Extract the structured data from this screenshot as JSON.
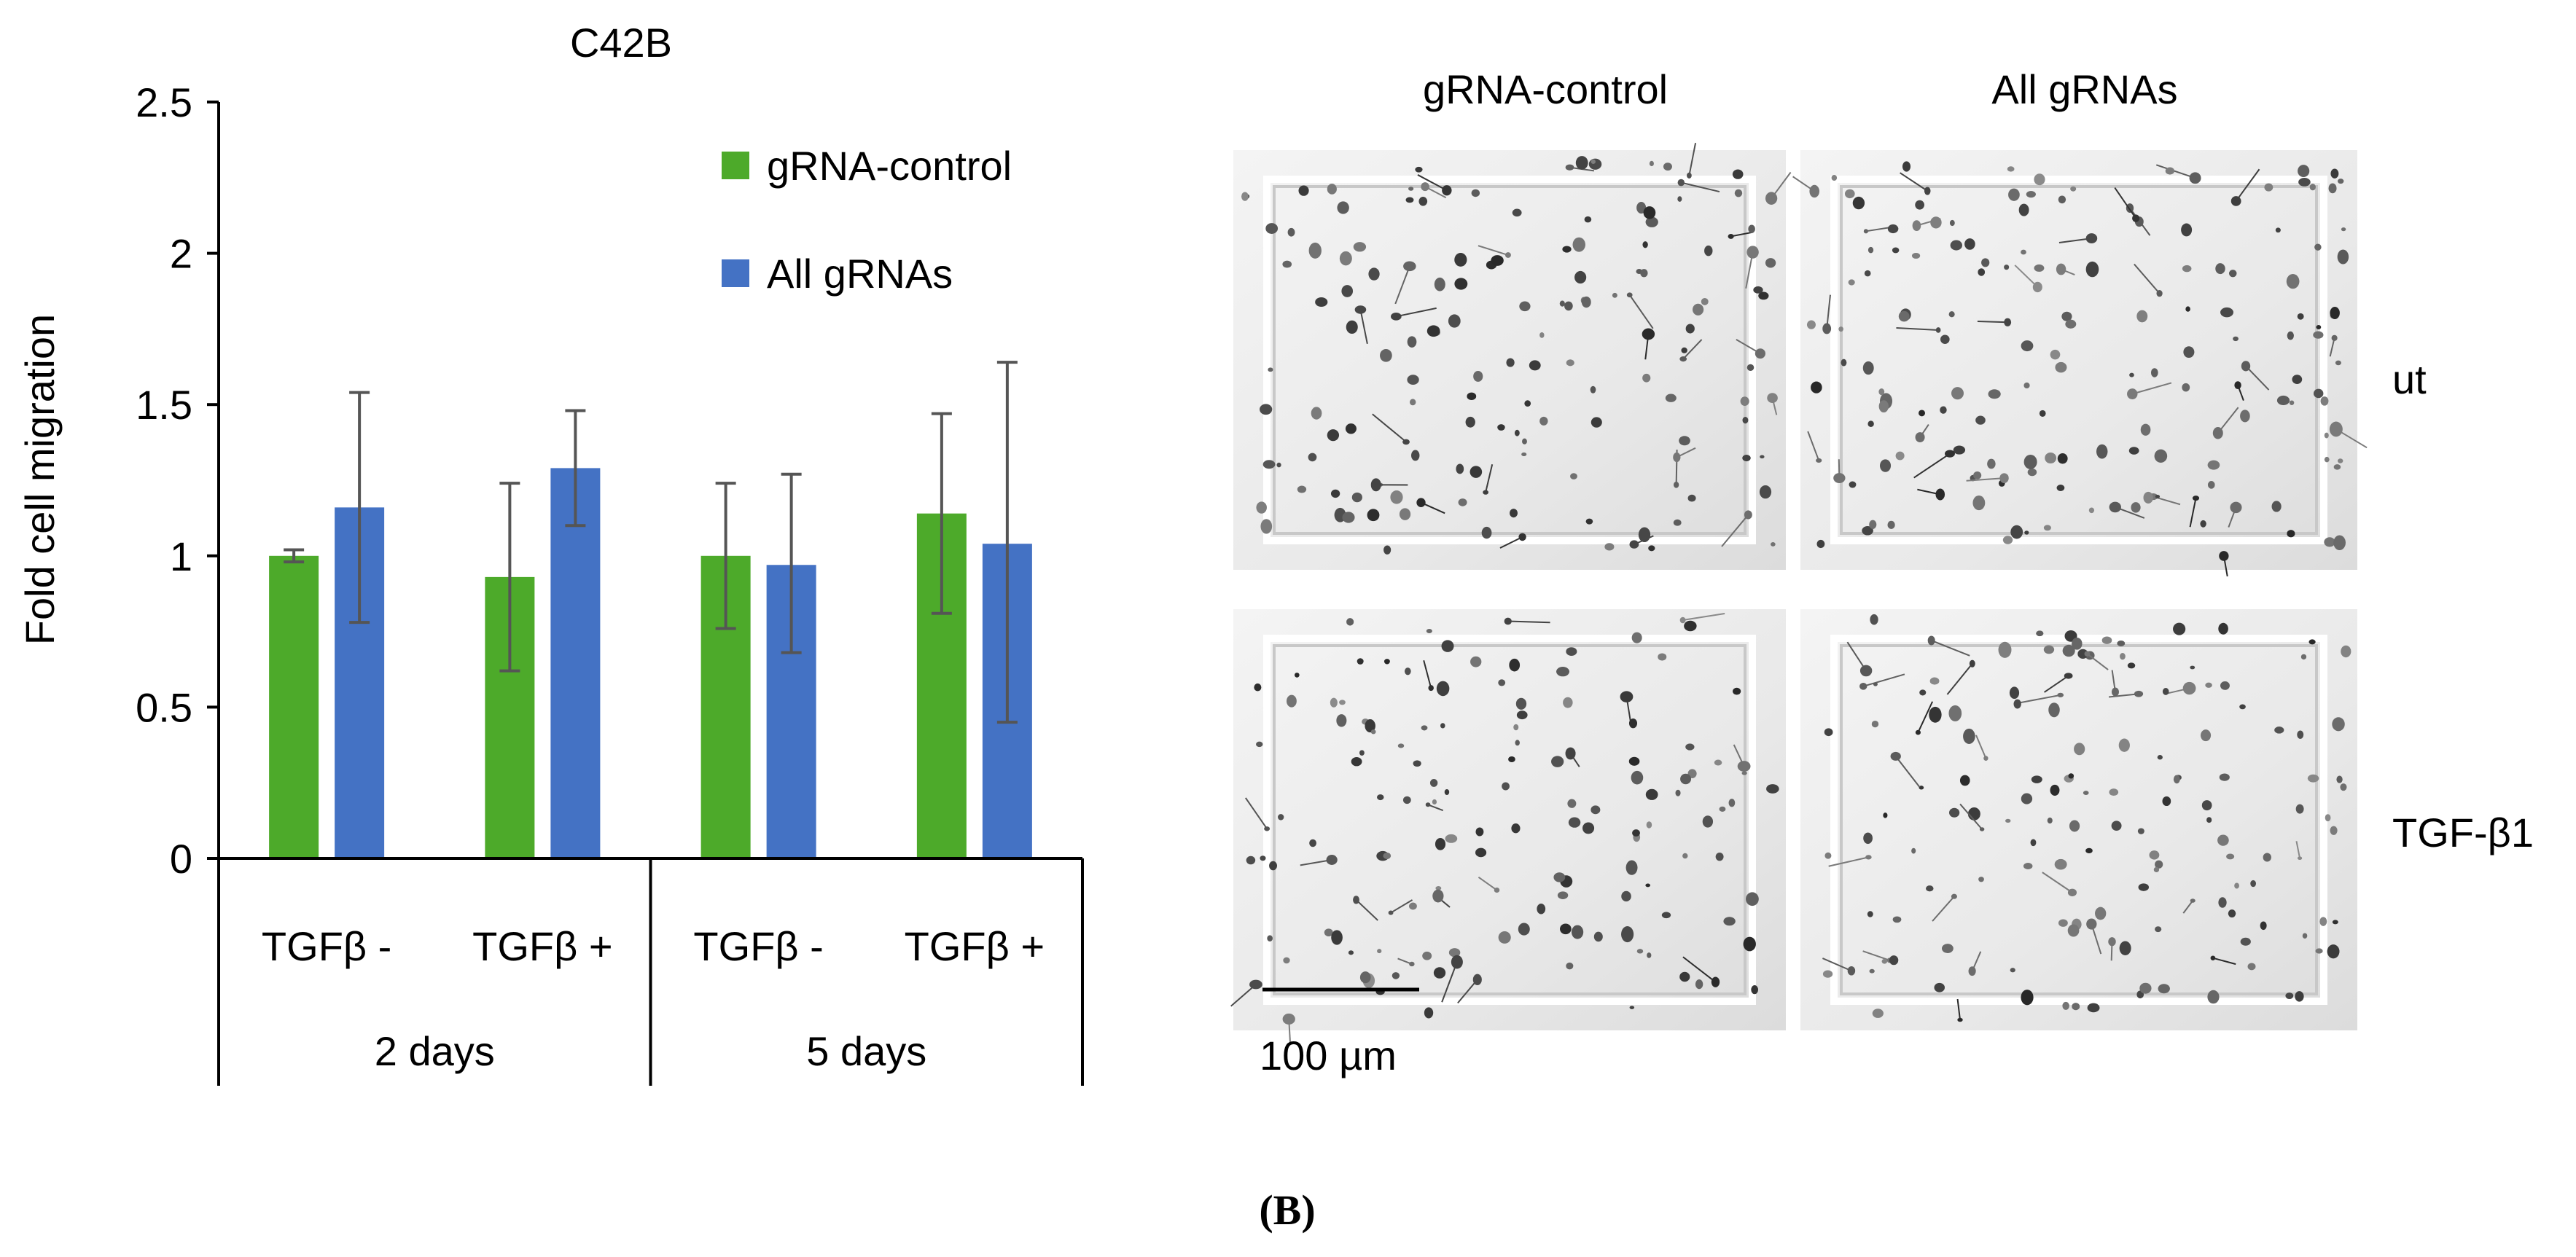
{
  "chart_data": {
    "type": "bar",
    "title": "C42B",
    "ylabel": "Fold cell migration",
    "xlabel": "",
    "ylim": [
      0,
      2.5
    ],
    "yticks": [
      "0",
      "0.5",
      "1",
      "1.5",
      "2",
      "2.5"
    ],
    "ytick_values": [
      0,
      0.5,
      1,
      1.5,
      2,
      2.5
    ],
    "categories": [
      "TGFβ -",
      "TGFβ +",
      "TGFβ -",
      "TGFβ +"
    ],
    "groups": [
      "2 days",
      "5 days"
    ],
    "legend_position": "top-right",
    "grid": false,
    "series": [
      {
        "name": "gRNA-control",
        "color": "#4daa2a",
        "values": [
          1.0,
          0.93,
          1.0,
          1.14
        ],
        "error_low": [
          0.98,
          0.62,
          0.76,
          0.81
        ],
        "error_high": [
          1.02,
          1.24,
          1.24,
          1.47
        ]
      },
      {
        "name": "All gRNAs",
        "color": "#4472c4",
        "values": [
          1.16,
          1.29,
          0.97,
          1.04
        ],
        "error_low": [
          0.78,
          1.1,
          0.68,
          0.45
        ],
        "error_high": [
          1.54,
          1.48,
          1.27,
          1.64
        ]
      }
    ]
  },
  "micrographs": {
    "column_labels": [
      "gRNA-control",
      "All gRNAs"
    ],
    "row_labels": [
      "ut",
      "TGF-β1"
    ],
    "scale_bar_label": "100 µm"
  },
  "panel_label": "(B)",
  "colors": {
    "axis": "#000000",
    "error_bar": "#555555",
    "image_bg": "#efefef",
    "cell": "#3a3a3a"
  }
}
